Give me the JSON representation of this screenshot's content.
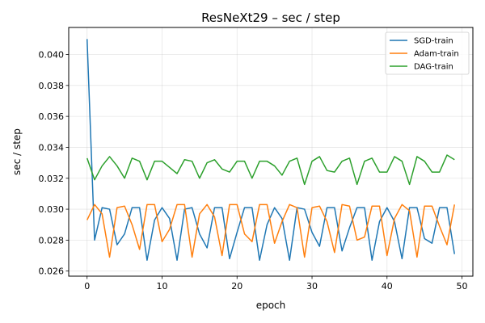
{
  "chart_data": {
    "type": "line",
    "title": "ResNeXt29 – sec / step",
    "xlabel": "epoch",
    "ylabel": "sec / step",
    "xlim": [
      -2.45,
      51.45
    ],
    "ylim": [
      0.02567,
      0.04175
    ],
    "xticks": [
      0,
      10,
      20,
      30,
      40,
      50
    ],
    "yticks": [
      0.026,
      0.028,
      0.03,
      0.032,
      0.034,
      0.036,
      0.038,
      0.04
    ],
    "ytick_labels": [
      "0.026",
      "0.028",
      "0.030",
      "0.032",
      "0.034",
      "0.036",
      "0.038",
      "0.040"
    ],
    "grid": true,
    "legend_position": "upper-right",
    "x": [
      0,
      1,
      2,
      3,
      4,
      5,
      6,
      7,
      8,
      9,
      10,
      11,
      12,
      13,
      14,
      15,
      16,
      17,
      18,
      19,
      20,
      21,
      22,
      23,
      24,
      25,
      26,
      27,
      28,
      29,
      30,
      31,
      32,
      33,
      34,
      35,
      36,
      37,
      38,
      39,
      40,
      41,
      42,
      43,
      44,
      45,
      46,
      47,
      48,
      49
    ],
    "series": [
      {
        "name": "SGD-train",
        "color": "#1f77b4",
        "values": [
          0.041,
          0.028,
          0.0301,
          0.03,
          0.0277,
          0.0284,
          0.0301,
          0.0301,
          0.0267,
          0.0293,
          0.0301,
          0.0294,
          0.0267,
          0.03,
          0.0301,
          0.0284,
          0.0275,
          0.0301,
          0.0301,
          0.0268,
          0.0285,
          0.0301,
          0.0301,
          0.0267,
          0.029,
          0.0301,
          0.0294,
          0.0267,
          0.0301,
          0.03,
          0.0285,
          0.0276,
          0.0301,
          0.0301,
          0.0273,
          0.0288,
          0.0301,
          0.0301,
          0.0267,
          0.0292,
          0.0301,
          0.0292,
          0.0268,
          0.0301,
          0.0301,
          0.0281,
          0.0278,
          0.0301,
          0.0301,
          0.0271
        ]
      },
      {
        "name": "Adam-train",
        "color": "#ff7f0e",
        "values": [
          0.0293,
          0.0303,
          0.0297,
          0.0269,
          0.0301,
          0.0302,
          0.029,
          0.0274,
          0.0303,
          0.0303,
          0.0279,
          0.0287,
          0.0303,
          0.0303,
          0.0269,
          0.0297,
          0.0303,
          0.0295,
          0.027,
          0.0303,
          0.0303,
          0.0284,
          0.0279,
          0.0303,
          0.0303,
          0.0278,
          0.0292,
          0.0303,
          0.0301,
          0.0269,
          0.0301,
          0.0302,
          0.0292,
          0.0272,
          0.0303,
          0.0302,
          0.028,
          0.0282,
          0.0302,
          0.0302,
          0.027,
          0.0294,
          0.0303,
          0.0299,
          0.0269,
          0.0302,
          0.0302,
          0.0289,
          0.0277,
          0.0303
        ]
      },
      {
        "name": "DAG-train",
        "color": "#2ca02c",
        "values": [
          0.0333,
          0.0319,
          0.0328,
          0.0334,
          0.0328,
          0.032,
          0.0333,
          0.0331,
          0.0319,
          0.0331,
          0.0331,
          0.0327,
          0.0323,
          0.0332,
          0.0331,
          0.032,
          0.033,
          0.0332,
          0.0326,
          0.0324,
          0.0331,
          0.0331,
          0.032,
          0.0331,
          0.0331,
          0.0328,
          0.0322,
          0.0331,
          0.0333,
          0.0316,
          0.0331,
          0.0334,
          0.0325,
          0.0324,
          0.0331,
          0.0333,
          0.0316,
          0.0331,
          0.0333,
          0.0324,
          0.0324,
          0.0334,
          0.0331,
          0.0316,
          0.0334,
          0.0331,
          0.0324,
          0.0324,
          0.0335,
          0.0332
        ]
      }
    ]
  }
}
